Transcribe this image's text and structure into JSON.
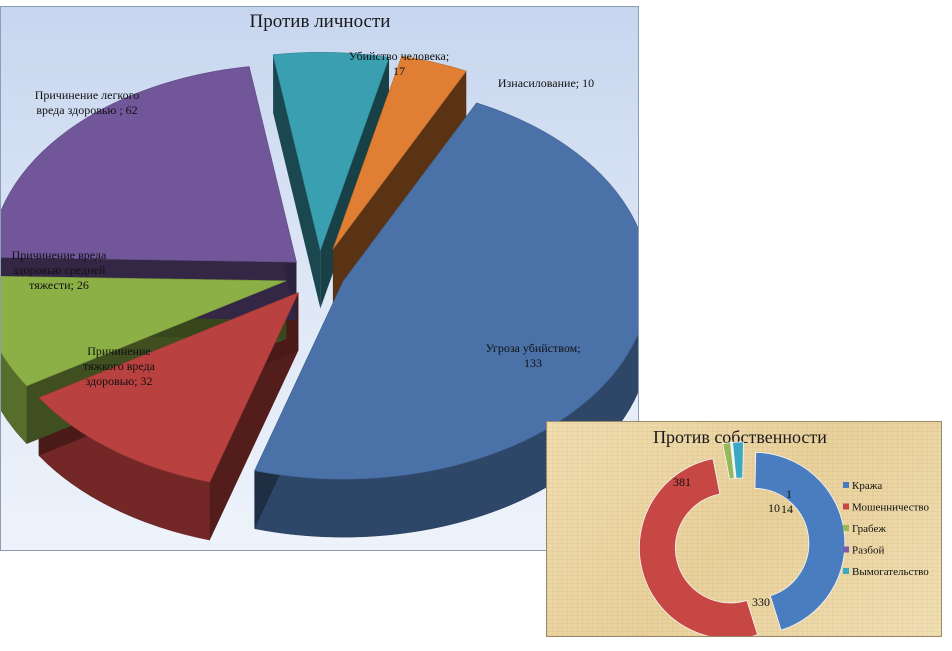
{
  "chart_data": [
    {
      "type": "pie",
      "title": "Против личности",
      "categories": [
        "Угроза убийством",
        "Причинение тяжкого вреда здоровью",
        "Причинение вреда здоровью средней тяжести",
        "Причинение легкого вреда здоровью",
        "Убийство человека",
        "Изнасилование"
      ],
      "values": [
        133,
        32,
        26,
        62,
        17,
        10
      ],
      "colors": [
        "#4a72a8",
        "#b9413f",
        "#8caf46",
        "#71579a",
        "#3b9fb2",
        "#e07f34"
      ],
      "labels": [
        [
          "Угроза убийством;",
          "133"
        ],
        [
          "Причинение",
          "тяжкого вреда",
          "здоровью; 32"
        ],
        [
          "Причинение вреда",
          "здоровью средней",
          "тяжести; 26"
        ],
        [
          "Причинение легкого",
          "вреда здоровью ; 62"
        ],
        [
          "Убийство человека;",
          "17"
        ],
        [
          "Изнасилование;  10"
        ]
      ]
    },
    {
      "type": "pie",
      "title": "Против собственности",
      "categories": [
        "Кража",
        "Мошенничество",
        "Грабеж",
        "Разбой",
        "Вымогательство"
      ],
      "values": [
        330,
        381,
        10,
        1,
        14
      ],
      "colors": [
        "#4a7cc0",
        "#c64744",
        "#95b957",
        "#7b5ea7",
        "#3aa9c4"
      ],
      "labels": [
        "330",
        "381",
        "10",
        "1",
        "14"
      ],
      "legend": {
        "position": "right",
        "items": [
          "Кража",
          "Мошенничество",
          "Грабеж",
          "Разбой",
          "Вымогательство"
        ]
      }
    }
  ]
}
